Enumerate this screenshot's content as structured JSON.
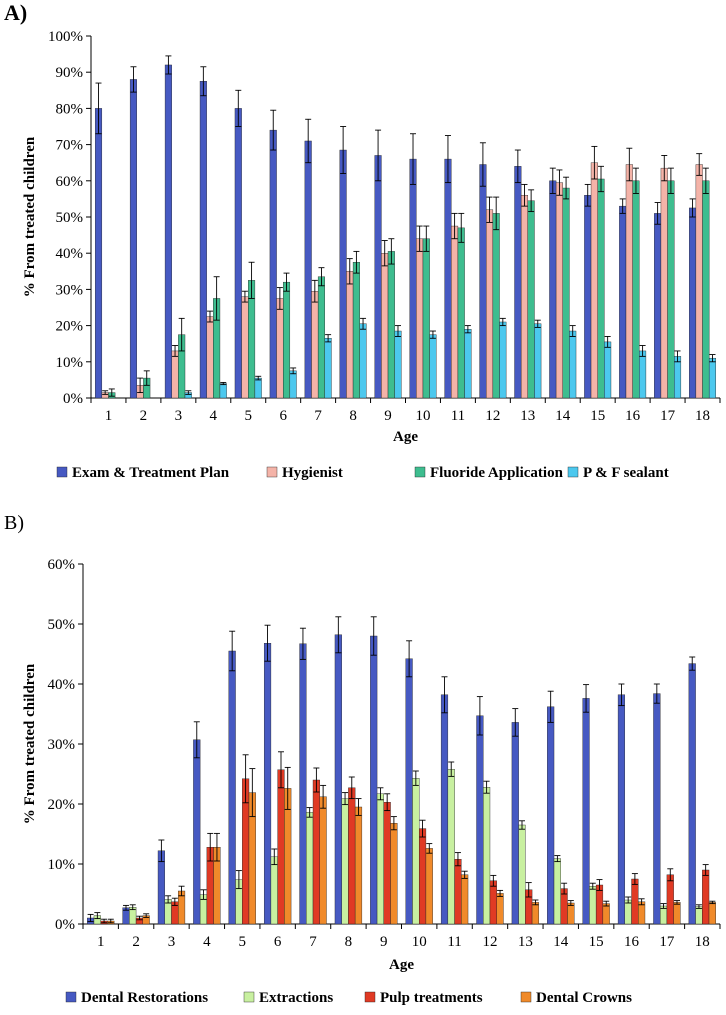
{
  "chart_data": [
    {
      "panel": "A)",
      "type": "bar",
      "xlabel": "Age",
      "ylabel": "% From treated children",
      "ylim": [
        0,
        100
      ],
      "yticks": [
        "0%",
        "10%",
        "20%",
        "30%",
        "40%",
        "50%",
        "60%",
        "70%",
        "80%",
        "90%",
        "100%"
      ],
      "categories": [
        "1",
        "2",
        "3",
        "4",
        "5",
        "6",
        "7",
        "8",
        "9",
        "10",
        "11",
        "12",
        "13",
        "14",
        "15",
        "16",
        "17",
        "18"
      ],
      "legend_position": "bottom",
      "series": [
        {
          "name": "Exam & Treatment Plan",
          "color": "#4659C2",
          "values": [
            80,
            88,
            92,
            87.5,
            80,
            74,
            71,
            68.5,
            67,
            66,
            66,
            64.5,
            64,
            60,
            56,
            53,
            51,
            52.5
          ],
          "errors": [
            7,
            3.5,
            2.5,
            4,
            5,
            5.5,
            6,
            6.5,
            7,
            7,
            6.5,
            6,
            4.5,
            3.5,
            3,
            2,
            3,
            2.5
          ]
        },
        {
          "name": "Hygienist",
          "color": "#F4B3A8",
          "values": [
            1.5,
            3.5,
            13,
            22.5,
            28,
            27.5,
            29.5,
            35,
            40,
            44,
            47.5,
            52,
            56,
            59.5,
            65,
            64.5,
            63.5,
            64.5
          ],
          "errors": [
            0.5,
            2,
            1.5,
            1.5,
            1.5,
            3,
            3,
            3.5,
            3.5,
            3.5,
            3.5,
            3.5,
            3,
            3.5,
            4.5,
            4.5,
            3.5,
            3
          ]
        },
        {
          "name": "Fluoride Application",
          "color": "#3EBD8F",
          "values": [
            1.5,
            5.5,
            17.5,
            27.5,
            32.5,
            32,
            33.5,
            37.5,
            40.5,
            44,
            47,
            51,
            54.5,
            58,
            60.5,
            60,
            60,
            60
          ],
          "errors": [
            1,
            2,
            4.5,
            6,
            5,
            2.5,
            2.5,
            3,
            3.5,
            3.5,
            4,
            4.5,
            3,
            3,
            3.5,
            3.5,
            3.5,
            3.5
          ]
        },
        {
          "name": "P & F sealant",
          "color": "#4CC8EE",
          "values": [
            0,
            0,
            1.5,
            4,
            5.5,
            7.5,
            16.5,
            20.5,
            18.5,
            17.5,
            19,
            21,
            20.5,
            18.5,
            15.5,
            13,
            11.5,
            11
          ],
          "errors": [
            0,
            0,
            0.5,
            0.3,
            0.5,
            0.8,
            1,
            1.5,
            1.5,
            1,
            1,
            1,
            1,
            1.5,
            1.5,
            1.5,
            1.5,
            1
          ]
        }
      ]
    },
    {
      "panel": "B)",
      "type": "bar",
      "xlabel": "Age",
      "ylabel": "% From treated children",
      "ylim": [
        0,
        60
      ],
      "yticks": [
        "0%",
        "10%",
        "20%",
        "30%",
        "40%",
        "50%",
        "60%"
      ],
      "categories": [
        "1",
        "2",
        "3",
        "4",
        "5",
        "6",
        "7",
        "8",
        "9",
        "10",
        "11",
        "12",
        "13",
        "14",
        "15",
        "16",
        "17",
        "18"
      ],
      "legend_position": "bottom",
      "series": [
        {
          "name": "Dental Restorations",
          "color": "#4659C2",
          "values": [
            1,
            2.7,
            12.2,
            30.7,
            45.5,
            46.8,
            46.7,
            48.2,
            48,
            44.2,
            38.2,
            34.7,
            33.6,
            36.2,
            37.6,
            38.2,
            38.4,
            43.4
          ],
          "errors": [
            0.6,
            0.4,
            1.8,
            3,
            3.3,
            3,
            2.6,
            3,
            3.2,
            3,
            3,
            3.2,
            2.3,
            2.6,
            2.3,
            1.8,
            1.6,
            1.1
          ]
        },
        {
          "name": "Extractions",
          "color": "#C8F0A0",
          "values": [
            1.4,
            2.8,
            4.1,
            4.9,
            7.4,
            11.2,
            18.6,
            20.9,
            21.7,
            24.3,
            25.8,
            22.8,
            16.5,
            10.9,
            6.3,
            4,
            3,
            2.9
          ],
          "errors": [
            0.5,
            0.4,
            0.6,
            0.8,
            1.5,
            1.3,
            0.8,
            1,
            1,
            1.2,
            1.2,
            1,
            0.7,
            0.5,
            0.5,
            0.5,
            0.4,
            0.3
          ]
        },
        {
          "name": "Pulp treatments",
          "color": "#E03A24",
          "values": [
            0.5,
            1,
            3.7,
            12.8,
            24.2,
            25.7,
            24,
            22.7,
            20.3,
            15.9,
            10.8,
            7.2,
            5.7,
            5.9,
            6.5,
            7.5,
            8.2,
            9
          ],
          "errors": [
            0.3,
            0.3,
            0.6,
            2.3,
            4,
            3,
            2,
            1.8,
            1.4,
            1.4,
            1.1,
            0.9,
            1.2,
            0.9,
            0.9,
            0.9,
            1,
            0.9
          ]
        },
        {
          "name": "Dental Crowns",
          "color": "#F08A2A",
          "values": [
            0.5,
            1.4,
            5.5,
            12.8,
            21.9,
            22.6,
            21.2,
            19.5,
            16.8,
            12.6,
            8.2,
            5.1,
            3.6,
            3.5,
            3.4,
            3.7,
            3.6,
            3.6
          ],
          "errors": [
            0.3,
            0.3,
            0.8,
            2.3,
            4,
            3.5,
            1.9,
            1.4,
            1.1,
            0.8,
            0.6,
            0.5,
            0.4,
            0.4,
            0.4,
            0.5,
            0.3,
            0.2
          ]
        }
      ]
    }
  ]
}
